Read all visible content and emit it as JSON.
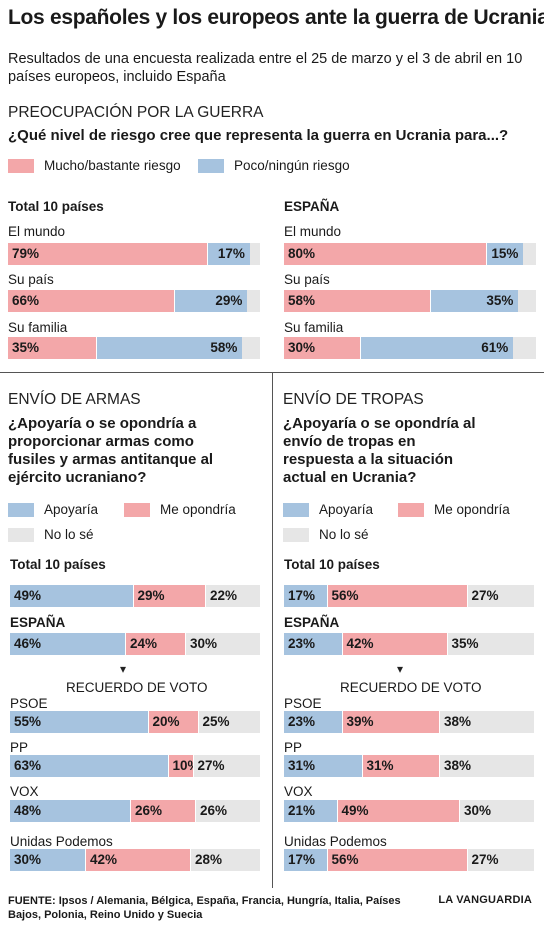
{
  "title": "Los españoles y los europeos ante la guerra de Ucrania",
  "subtitle": "Resultados de una encuesta realizada entre el 25 de marzo y el 3 de abril en 10 países europeos, incluido España",
  "colors": {
    "mucho": "#f3a7a9",
    "poco": "#a6c3df",
    "apoyaria": "#a6c3df",
    "me_opondria": "#f3a7a9",
    "no_lo_se": "#e6e6e6"
  },
  "preocupacion": {
    "heading": "PREOCUPACIÓN POR LA GUERRA",
    "question": "¿Qué nivel de riesgo cree que representa la guerra en Ucrania para...?",
    "legend": {
      "mucho": "Mucho/bastante riesgo",
      "poco": "Poco/ningún riesgo"
    }
  },
  "armas": {
    "heading": "ENVÍO DE ARMAS",
    "question": "¿Apoyaría o se opondría a proporcionar armas como fusiles y armas antitanque al ejército ucraniano?",
    "legend": {
      "support": "Apoyaría",
      "oppose": "Me opondría",
      "unsure": "No lo sé"
    },
    "recuerdo": "RECUERDO DE VOTO"
  },
  "tropas": {
    "heading": "ENVÍO DE TROPAS",
    "question": "¿Apoyaría o se opondría al envío de tropas en respuesta a la situación actual en Ucrania?",
    "legend": {
      "support": "Apoyaría",
      "oppose": "Me opondría",
      "unsure": "No lo sé"
    },
    "recuerdo": "RECUERDO DE VOTO"
  },
  "chart_data": [
    {
      "type": "bar",
      "stacked": true,
      "orientation": "horizontal",
      "group": "Total 10 países",
      "categories": [
        "El mundo",
        "Su país",
        "Su familia"
      ],
      "series": [
        {
          "name": "Mucho/bastante riesgo",
          "values": [
            79,
            66,
            35
          ]
        },
        {
          "name": "Poco/ningún riesgo",
          "values": [
            17,
            29,
            58
          ]
        }
      ],
      "xlim": [
        0,
        100
      ]
    },
    {
      "type": "bar",
      "stacked": true,
      "orientation": "horizontal",
      "group": "ESPAÑA",
      "categories": [
        "El mundo",
        "Su país",
        "Su familia"
      ],
      "series": [
        {
          "name": "Mucho/bastante riesgo",
          "values": [
            80,
            58,
            30
          ]
        },
        {
          "name": "Poco/ningún riesgo",
          "values": [
            15,
            35,
            61
          ]
        }
      ],
      "xlim": [
        0,
        100
      ]
    },
    {
      "type": "bar",
      "stacked": true,
      "orientation": "horizontal",
      "group": "ENVÍO DE ARMAS",
      "categories": [
        "Total 10 países",
        "ESPAÑA",
        "PSOE",
        "PP",
        "VOX",
        "Unidas Podemos"
      ],
      "series": [
        {
          "name": "Apoyaría",
          "values": [
            49,
            46,
            55,
            63,
            48,
            30
          ]
        },
        {
          "name": "Me opondría",
          "values": [
            29,
            24,
            20,
            10,
            26,
            42
          ]
        },
        {
          "name": "No lo sé",
          "values": [
            22,
            30,
            25,
            27,
            26,
            28
          ]
        }
      ],
      "xlim": [
        0,
        100
      ]
    },
    {
      "type": "bar",
      "stacked": true,
      "orientation": "horizontal",
      "group": "ENVÍO DE TROPAS",
      "categories": [
        "Total 10 países",
        "ESPAÑA",
        "PSOE",
        "PP",
        "VOX",
        "Unidas Podemos"
      ],
      "series": [
        {
          "name": "Apoyaría",
          "values": [
            17,
            23,
            23,
            31,
            21,
            17
          ]
        },
        {
          "name": "Me opondría",
          "values": [
            56,
            42,
            39,
            31,
            49,
            56
          ]
        },
        {
          "name": "No lo sé",
          "values": [
            27,
            35,
            38,
            38,
            30,
            27
          ]
        }
      ],
      "xlim": [
        0,
        100
      ]
    }
  ],
  "footer": {
    "source": "FUENTE: Ipsos / Alemania, Bélgica, España, Francia, Hungría, Italia, Países Bajos, Polonia, Reino Unido y Suecia",
    "brand": "LA VANGUARDIA"
  }
}
